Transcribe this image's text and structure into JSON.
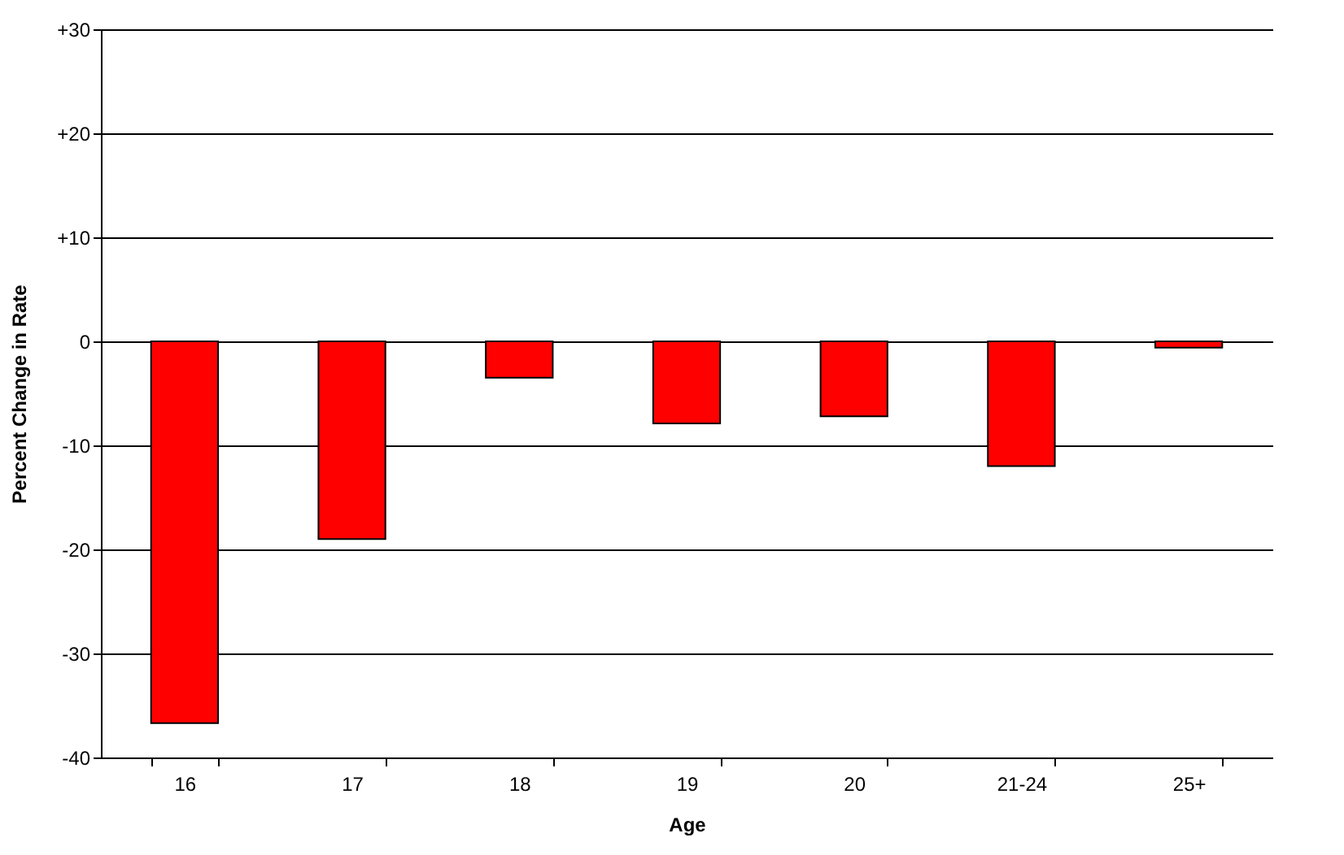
{
  "chart_data": {
    "type": "bar",
    "xlabel": "Age",
    "ylabel": "Percent Change in Rate",
    "categories": [
      "16",
      "17",
      "18",
      "19",
      "20",
      "21-24",
      "25+"
    ],
    "values": [
      -36.7,
      -19.0,
      -3.5,
      -7.9,
      -7.2,
      -12.0,
      -0.6
    ],
    "color": "#ff0000",
    "ylim": [
      -40,
      30
    ],
    "yticks": [
      -40,
      -30,
      -20,
      -10,
      0,
      {
        "value": 10,
        "label": "+10"
      },
      {
        "value": 20,
        "label": "+20"
      },
      {
        "value": 30,
        "label": "+30"
      }
    ],
    "grid": "y"
  }
}
